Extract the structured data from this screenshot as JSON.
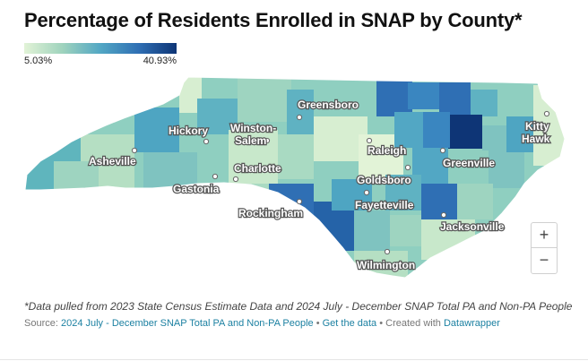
{
  "title": "Percentage of Residents Enrolled in SNAP by County*",
  "legend": {
    "min": "5.03%",
    "max": "40.93%",
    "colors": [
      "#e2f3d7",
      "#9fd3bd",
      "#52a7c4",
      "#2f6fb4",
      "#0e3576"
    ]
  },
  "map": {
    "state_fill": "#8fcfc0",
    "cities": [
      {
        "name": "Greensboro",
        "key": "greensboro"
      },
      {
        "name": "Hickory",
        "key": "hickory"
      },
      {
        "name": "Winston-",
        "key": "winston1"
      },
      {
        "name": "Salem",
        "key": "winston2"
      },
      {
        "name": "Raleigh",
        "key": "raleigh"
      },
      {
        "name": "Kitty",
        "key": "kitty1"
      },
      {
        "name": "Hawk",
        "key": "kitty2"
      },
      {
        "name": "Asheville",
        "key": "asheville"
      },
      {
        "name": "Charlotte",
        "key": "charlotte"
      },
      {
        "name": "Greenville",
        "key": "greenville"
      },
      {
        "name": "Gastonia",
        "key": "gastonia"
      },
      {
        "name": "Goldsboro",
        "key": "goldsboro"
      },
      {
        "name": "Fayetteville",
        "key": "fayetteville"
      },
      {
        "name": "Rockingham",
        "key": "rockingham"
      },
      {
        "name": "Jacksonville",
        "key": "jacksonville"
      },
      {
        "name": "Wilmington",
        "key": "wilmington"
      }
    ]
  },
  "zoom": {
    "in_label": "+",
    "out_label": "−"
  },
  "footnote": "*Data pulled from 2023 State Census Estimate Data and 2024 July - December SNAP Total PA and Non-PA People",
  "source": {
    "prefix": "Source: ",
    "link1": "2024 July - December SNAP Total PA and Non-PA People",
    "sep1": " • ",
    "link2": "Get the data",
    "sep2": " • Created with ",
    "link3": "Datawrapper"
  }
}
